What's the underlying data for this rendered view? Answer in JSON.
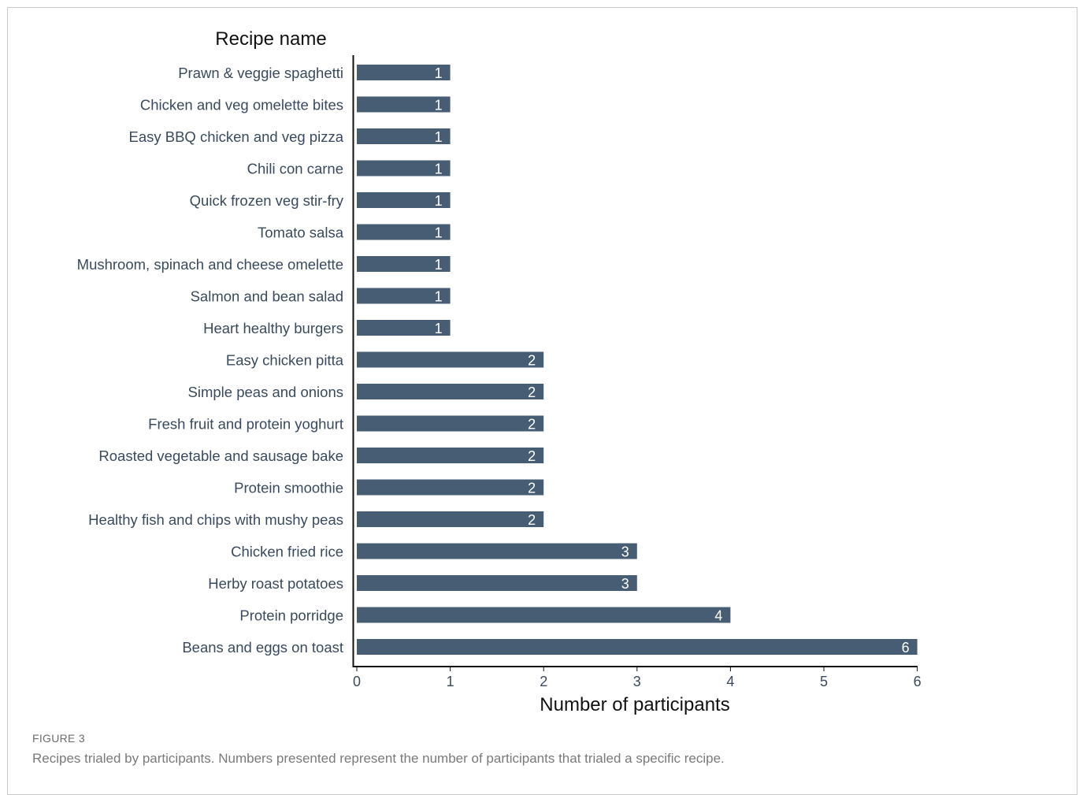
{
  "figure": {
    "label": "FIGURE 3",
    "caption": "Recipes trialed by participants. Numbers presented represent the number of participants that trialed a specific recipe."
  },
  "chart_data": {
    "type": "bar",
    "orientation": "horizontal",
    "title": "Recipe name",
    "xlabel": "Number of participants",
    "ylabel": "",
    "xlim": [
      0,
      6
    ],
    "xticks": [
      "0",
      "1",
      "2",
      "3",
      "4",
      "5",
      "6"
    ],
    "grid": false,
    "bar_color": "#475d73",
    "categories": [
      "Prawn & veggie spaghetti",
      "Chicken and veg omelette bites",
      "Easy BBQ chicken and veg pizza",
      "Chili con carne",
      "Quick frozen veg stir-fry",
      "Tomato salsa",
      "Mushroom, spinach and cheese omelette",
      "Salmon and bean salad",
      "Heart healthy burgers",
      "Easy chicken pitta",
      "Simple peas and onions",
      "Fresh fruit and protein yoghurt",
      "Roasted vegetable and sausage bake",
      "Protein smoothie",
      "Healthy fish and chips with mushy peas",
      "Chicken fried rice",
      "Herby roast potatoes",
      "Protein porridge",
      "Beans and eggs on toast"
    ],
    "values": [
      1,
      1,
      1,
      1,
      1,
      1,
      1,
      1,
      1,
      2,
      2,
      2,
      2,
      2,
      2,
      3,
      3,
      4,
      6
    ],
    "data_labels": [
      "1",
      "1",
      "1",
      "1",
      "1",
      "1",
      "1",
      "1",
      "1",
      "2",
      "2",
      "2",
      "2",
      "2",
      "2",
      "3",
      "3",
      "4",
      "6"
    ]
  }
}
